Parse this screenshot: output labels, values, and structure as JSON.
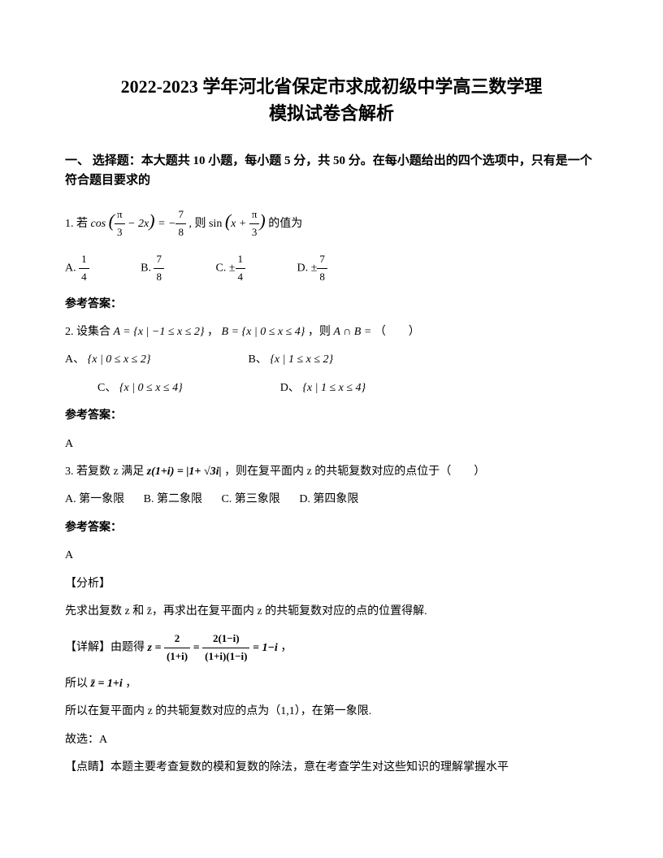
{
  "title_line1": "2022-2023 学年河北省保定市求成初级中学高三数学理",
  "title_line2": "模拟试卷含解析",
  "section1_heading": "一、 选择题：本大题共 10 小题，每小题 5 分，共 50 分。在每小题给出的四个选项中，只有是一个符合题目要求的",
  "q1": {
    "num": "1. 若",
    "formula_prefix": "cos",
    "formula_arg1_num": "π",
    "formula_arg1_den": "3",
    "formula_mid": "− 2x",
    "eq_rhs_num": "7",
    "eq_rhs_den": "8",
    "then": ", 则 sin",
    "formula_arg2_var": "x +",
    "formula_arg2_num": "π",
    "formula_arg2_den": "3",
    "suffix": "的值为",
    "optA_label": "A.",
    "optA_num": "1",
    "optA_den": "4",
    "optB_label": "B.",
    "optB_num": "7",
    "optB_den": "8",
    "optC_label": "C.",
    "optC_prefix": "±",
    "optC_num": "1",
    "optC_den": "4",
    "optD_label": "D.",
    "optD_prefix": "±",
    "optD_num": "7",
    "optD_den": "8",
    "answer_label": "参考答案："
  },
  "q2": {
    "num": "2. 设集合",
    "setA": "A = {x | −1 ≤ x ≤ 2}",
    "comma1": "，",
    "setB": "B = {x | 0 ≤ x ≤ 4}",
    "comma2": "，则",
    "intersect": "A ∩ B =",
    "paren": "（　　）",
    "optA_label": "A、",
    "optA": "{x | 0 ≤ x ≤ 2}",
    "optB_label": "B、",
    "optB": "{x | 1 ≤ x ≤ 2}",
    "optC_label": "C、",
    "optC": "{x | 0 ≤ x ≤ 4}",
    "optD_label": "D、",
    "optD": "{x | 1 ≤ x ≤ 4}",
    "answer_label": "参考答案：",
    "answer": "A"
  },
  "q3": {
    "num": "3. 若复数 z 满足",
    "formula": "z(1+i) = |1+ √3i|",
    "suffix": "，则在复平面内 z 的共轭复数对应的点位于（　　）",
    "optA": "A. 第一象限",
    "optB": "B. 第二象限",
    "optC": "C. 第三象限",
    "optD": "D. 第四象限",
    "answer_label": "参考答案：",
    "answer": "A",
    "analysis_label": "【分析】",
    "analysis_text": "先求出复数 z 和 z̄，再求出在复平面内 z 的共轭复数对应的点的位置得解.",
    "detail_label": "【详解】由题得",
    "detail_formula_lhs": "z =",
    "detail_num1": "2",
    "detail_den1": "(1+i)",
    "detail_eq": "=",
    "detail_num2": "2(1−i)",
    "detail_den2": "(1+i)(1−i)",
    "detail_eq2": "= 1−i",
    "detail_comma": "，",
    "so_label": "所以",
    "so_formula": "z̄ = 1+i",
    "so_comma": "，",
    "conclusion": "所以在复平面内 z 的共轭复数对应的点为（1,1），在第一象限.",
    "choose": "故选：A",
    "comment_label": "【点睛】本题主要考查复数的模和复数的除法，意在考查学生对这些知识的理解掌握水平"
  }
}
